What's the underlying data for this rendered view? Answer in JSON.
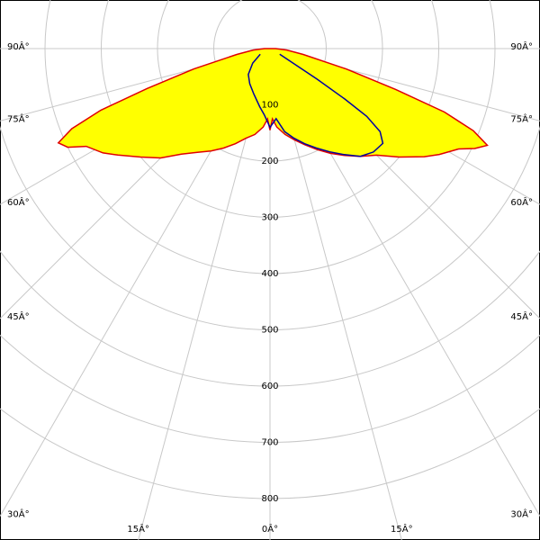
{
  "chart_data": {
    "type": "polar",
    "rlim": [
      0,
      800
    ],
    "rticks": [
      100,
      200,
      300,
      400,
      500,
      600,
      700,
      800
    ],
    "angle_ticks": [
      {
        "value": -90,
        "label": "90Â°"
      },
      {
        "value": -75,
        "label": "75Â°"
      },
      {
        "value": -60,
        "label": "60Â°"
      },
      {
        "value": -45,
        "label": "45Â°"
      },
      {
        "value": -30,
        "label": "30Â°"
      },
      {
        "value": -15,
        "label": "15Â°"
      },
      {
        "value": 0,
        "label": "0Â°"
      },
      {
        "value": 15,
        "label": "15Â°"
      },
      {
        "value": 30,
        "label": "30Â°"
      },
      {
        "value": 45,
        "label": "45Â°"
      },
      {
        "value": 60,
        "label": "60Â°"
      },
      {
        "value": 75,
        "label": "75Â°"
      },
      {
        "value": 90,
        "label": "90Â°"
      }
    ],
    "grid": true,
    "series": [
      {
        "color": "#e00000",
        "fill": "#ffff00",
        "angles": [
          -90,
          -85,
          -80,
          -75,
          -72,
          -70,
          -68,
          -66,
          -64,
          -62,
          -58,
          -55,
          -50,
          -45,
          -40,
          -35,
          -30,
          -25,
          -20,
          -15,
          -10,
          -5,
          -2,
          0,
          2,
          5,
          10,
          15,
          20,
          25,
          30,
          35,
          40,
          45,
          50,
          55,
          58,
          62,
          64,
          66,
          68,
          70,
          72,
          75,
          80,
          85,
          90
        ],
        "values": [
          10,
          30,
          60,
          140,
          230,
          320,
          380,
          412,
          400,
          370,
          350,
          330,
          300,
          275,
          245,
          225,
          210,
          195,
          180,
          165,
          155,
          140,
          125,
          145,
          125,
          140,
          155,
          168,
          182,
          198,
          215,
          232,
          250,
          268,
          300,
          335,
          355,
          380,
          405,
          423,
          390,
          330,
          235,
          140,
          60,
          30,
          10
        ]
      },
      {
        "color": "#0000a0",
        "angles": [
          -60,
          -50,
          -40,
          -30,
          -20,
          -10,
          -5,
          0,
          5,
          10,
          15,
          20,
          25,
          30,
          35,
          40,
          45,
          50,
          53,
          55,
          56,
          57,
          60
        ],
        "values": [
          20,
          40,
          60,
          72,
          85,
          105,
          118,
          140,
          125,
          150,
          165,
          180,
          195,
          212,
          230,
          250,
          260,
          262,
          245,
          210,
          160,
          100,
          20
        ]
      }
    ]
  }
}
